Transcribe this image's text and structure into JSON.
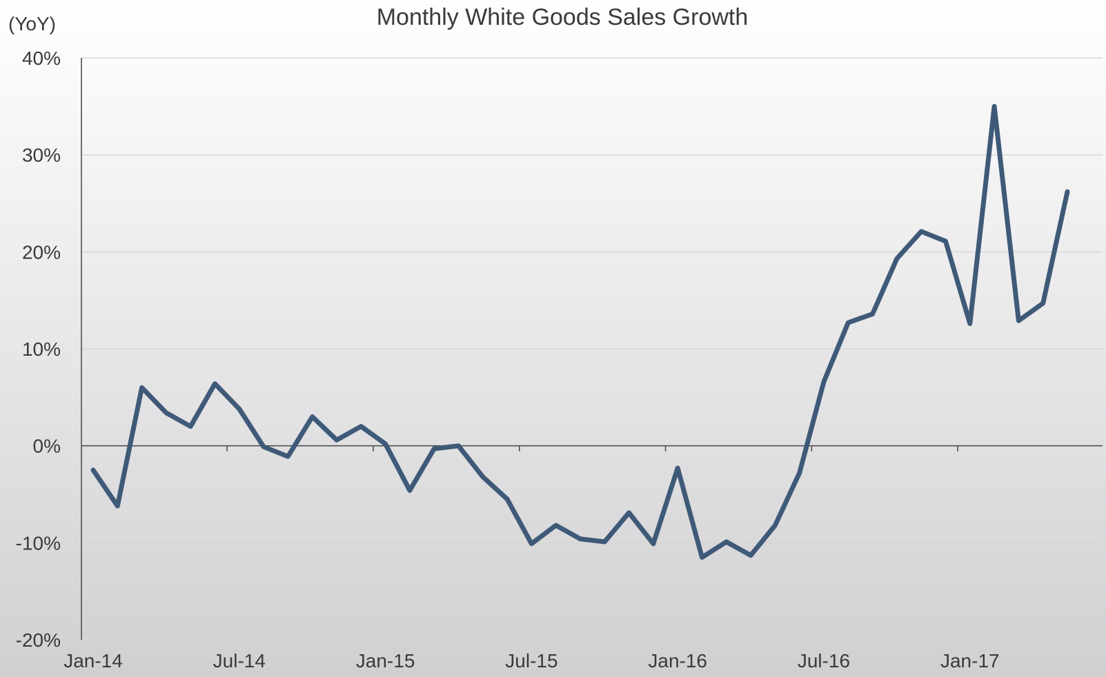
{
  "chart_data": {
    "type": "line",
    "title": "Monthly  White Goods Sales Growth",
    "unit_label": "(YoY)",
    "xlabel": "",
    "ylabel": "",
    "ylim": [
      -20,
      40
    ],
    "y_ticks": [
      40,
      30,
      20,
      10,
      0,
      -10,
      -20
    ],
    "y_tick_labels": [
      "40%",
      "30%",
      "20%",
      "10%",
      "0%",
      "-10%",
      "-20%"
    ],
    "x_tick_labels": [
      "Jan-14",
      "Jul-14",
      "Jan-15",
      "Jul-15",
      "Jan-16",
      "Jul-16",
      "Jan-17"
    ],
    "grid": true,
    "line_color": "#3f5a78",
    "x": [
      "2014-01",
      "2014-02",
      "2014-03",
      "2014-04",
      "2014-05",
      "2014-06",
      "2014-07",
      "2014-08",
      "2014-09",
      "2014-10",
      "2014-11",
      "2014-12",
      "2015-01",
      "2015-02",
      "2015-03",
      "2015-04",
      "2015-05",
      "2015-06",
      "2015-07",
      "2015-08",
      "2015-09",
      "2015-10",
      "2015-11",
      "2015-12",
      "2016-01",
      "2016-02",
      "2016-03",
      "2016-04",
      "2016-05",
      "2016-06",
      "2016-07",
      "2016-08",
      "2016-09",
      "2016-10",
      "2016-11",
      "2016-12",
      "2017-01",
      "2017-02",
      "2017-03",
      "2017-04",
      "2017-05"
    ],
    "series": [
      {
        "values": [
          -2.5,
          -6.2,
          6.0,
          3.4,
          2.0,
          6.4,
          3.8,
          -0.1,
          -1.1,
          3.0,
          0.6,
          2.0,
          0.2,
          -4.6,
          -0.3,
          0.0,
          -3.2,
          -5.5,
          -10.1,
          -8.2,
          -9.6,
          -9.9,
          -6.9,
          -10.1,
          -2.3,
          -11.5,
          -9.9,
          -11.3,
          -8.2,
          -2.8,
          6.6,
          12.7,
          13.6,
          19.3,
          22.1,
          21.1,
          12.6,
          35.0,
          12.9,
          14.7,
          26.2
        ]
      }
    ]
  }
}
